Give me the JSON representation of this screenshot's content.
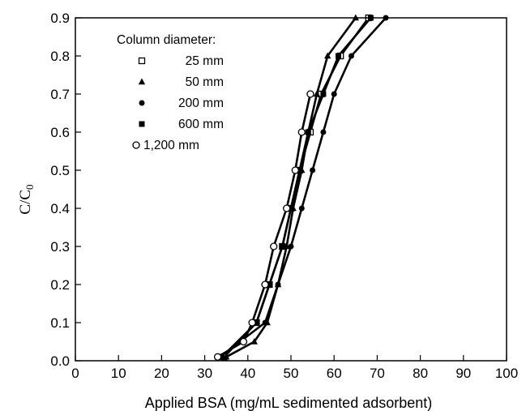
{
  "chart_data": {
    "type": "line",
    "xlabel": "Applied BSA (mg/mL sedimented adsorbent)",
    "ylabel_main": "C/C",
    "ylabel_sub": "0",
    "xlim": [
      0,
      100
    ],
    "ylim": [
      0,
      0.9
    ],
    "xticks": [
      "0",
      "10",
      "20",
      "30",
      "40",
      "50",
      "60",
      "70",
      "80",
      "90",
      "100"
    ],
    "yticks": [
      "0.0",
      "0.1",
      "0.2",
      "0.3",
      "0.4",
      "0.5",
      "0.6",
      "0.7",
      "0.8",
      "0.9"
    ],
    "grid": false,
    "legend_title": "Column diameter:",
    "legend_position": "top-left",
    "series": [
      {
        "name": "25 mm",
        "marker": "open-square",
        "points": [
          [
            34.5,
            0.01
          ],
          [
            42,
            0.1
          ],
          [
            45,
            0.2
          ],
          [
            48,
            0.3
          ],
          [
            50,
            0.4
          ],
          [
            52,
            0.5
          ],
          [
            54.5,
            0.6
          ],
          [
            57,
            0.7
          ],
          [
            61.5,
            0.8
          ],
          [
            68,
            0.9
          ]
        ]
      },
      {
        "name": "50 mm",
        "marker": "filled-triangle",
        "points": [
          [
            35,
            0.01
          ],
          [
            41.5,
            0.05
          ],
          [
            44.5,
            0.1
          ],
          [
            47,
            0.2
          ],
          [
            49,
            0.3
          ],
          [
            50.5,
            0.4
          ],
          [
            52.5,
            0.5
          ],
          [
            54,
            0.6
          ],
          [
            56,
            0.7
          ],
          [
            58.5,
            0.8
          ],
          [
            65,
            0.9
          ]
        ]
      },
      {
        "name": "200 mm",
        "marker": "filled-circle",
        "points": [
          [
            33.5,
            0.01
          ],
          [
            44,
            0.1
          ],
          [
            47,
            0.2
          ],
          [
            50,
            0.3
          ],
          [
            52.5,
            0.4
          ],
          [
            55,
            0.5
          ],
          [
            57.5,
            0.6
          ],
          [
            60,
            0.7
          ],
          [
            64,
            0.8
          ],
          [
            72,
            0.9
          ]
        ]
      },
      {
        "name": "600 mm",
        "marker": "filled-square",
        "points": [
          [
            34,
            0.01
          ],
          [
            42,
            0.1
          ],
          [
            45,
            0.2
          ],
          [
            48,
            0.3
          ],
          [
            50,
            0.4
          ],
          [
            52,
            0.5
          ],
          [
            54,
            0.6
          ],
          [
            57.5,
            0.7
          ],
          [
            61,
            0.8
          ],
          [
            68.5,
            0.9
          ]
        ]
      },
      {
        "name": "1,200 mm",
        "marker": "open-circle",
        "points": [
          [
            33,
            0.01
          ],
          [
            39,
            0.05
          ],
          [
            41,
            0.1
          ],
          [
            44,
            0.2
          ],
          [
            46,
            0.3
          ],
          [
            49,
            0.4
          ],
          [
            51,
            0.5
          ],
          [
            52.5,
            0.6
          ],
          [
            54.5,
            0.7
          ]
        ]
      }
    ]
  }
}
